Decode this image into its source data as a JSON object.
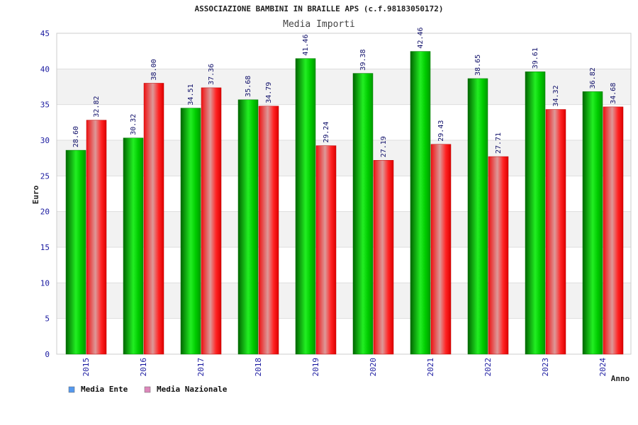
{
  "chart_data": {
    "type": "bar",
    "title": "ASSOCIAZIONE BAMBINI IN BRAILLE APS (c.f.98183050172)",
    "subtitle": "Media Importi",
    "xlabel": "Anno",
    "ylabel": "Euro",
    "ylim": [
      0,
      45
    ],
    "yticks": [
      0,
      5,
      10,
      15,
      20,
      25,
      30,
      35,
      40,
      45
    ],
    "grid": true,
    "legend_position": "bottom-left",
    "categories": [
      "2015",
      "2016",
      "2017",
      "2018",
      "2019",
      "2020",
      "2021",
      "2022",
      "2023",
      "2024"
    ],
    "series": [
      {
        "name": "Media Ente",
        "color": "#00bb00",
        "legend_color": "#5599ee",
        "values": [
          28.6,
          30.32,
          34.51,
          35.68,
          41.46,
          39.38,
          42.46,
          38.65,
          39.61,
          36.82
        ],
        "labels": [
          "28.60",
          "30.32",
          "34.51",
          "35.68",
          "41.46",
          "39.38",
          "42.46",
          "38.65",
          "39.61",
          "36.82"
        ]
      },
      {
        "name": "Media Nazionale",
        "color": "#ee1111",
        "legend_color": "#dd88bb",
        "values": [
          32.82,
          38.0,
          37.36,
          34.79,
          29.24,
          27.19,
          29.43,
          27.71,
          34.32,
          34.68
        ],
        "labels": [
          "32.82",
          "38.00",
          "37.36",
          "34.79",
          "29.24",
          "27.19",
          "29.43",
          "27.71",
          "34.32",
          "34.68"
        ]
      }
    ]
  }
}
